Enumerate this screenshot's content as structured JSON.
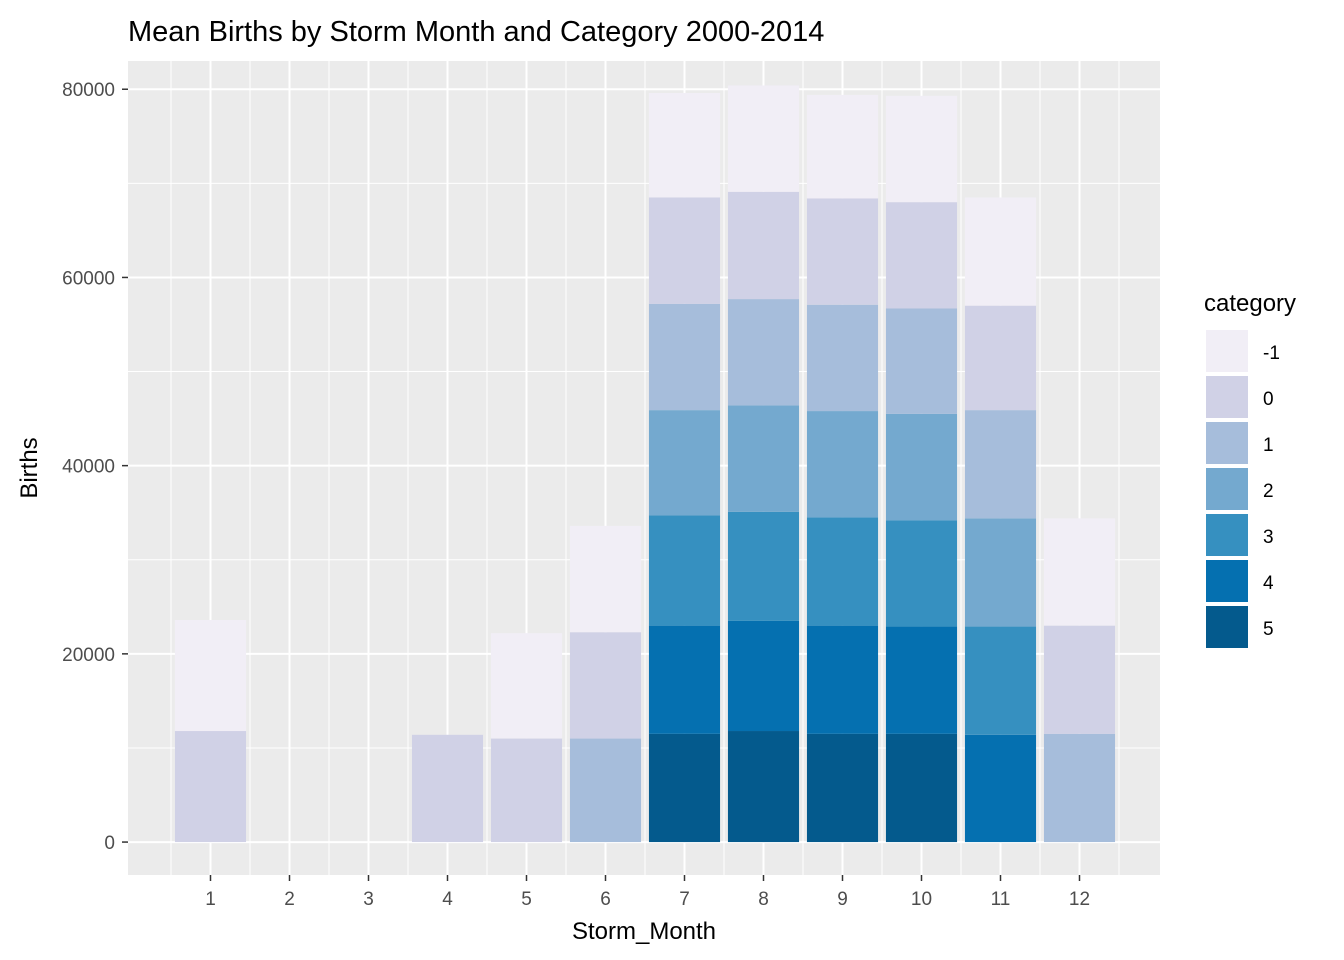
{
  "chart_data": {
    "type": "bar",
    "stacked": true,
    "title": "Mean Births by Storm Month and Category 2000-2014",
    "xlabel": "Storm_Month",
    "ylabel": "Births",
    "ylim": [
      -3500,
      83000
    ],
    "yticks": [
      "0",
      "20000",
      "40000",
      "60000",
      "80000"
    ],
    "ytick_values": [
      0,
      20000,
      40000,
      60000,
      80000
    ],
    "categories": [
      "1",
      "2",
      "3",
      "4",
      "5",
      "6",
      "7",
      "8",
      "9",
      "10",
      "11",
      "12"
    ],
    "legend": {
      "title": "category",
      "position": "right"
    },
    "grid": true,
    "series": [
      {
        "name": "5",
        "color": "#045a8d",
        "values": [
          0,
          0,
          0,
          0,
          0,
          0,
          11500,
          11800,
          11500,
          11500,
          0,
          0
        ]
      },
      {
        "name": "4",
        "color": "#0570b0",
        "values": [
          0,
          0,
          0,
          0,
          0,
          0,
          11500,
          11700,
          11500,
          11400,
          11400,
          0
        ]
      },
      {
        "name": "3",
        "color": "#3690c0",
        "values": [
          0,
          0,
          0,
          0,
          0,
          0,
          11700,
          11600,
          11500,
          11300,
          11500,
          0
        ]
      },
      {
        "name": "2",
        "color": "#74a9cf",
        "values": [
          0,
          0,
          0,
          0,
          0,
          0,
          11200,
          11300,
          11300,
          11300,
          11500,
          0
        ]
      },
      {
        "name": "1",
        "color": "#a6bddb",
        "values": [
          0,
          0,
          0,
          0,
          0,
          11000,
          11300,
          11300,
          11300,
          11200,
          11500,
          11500
        ]
      },
      {
        "name": "0",
        "color": "#d0d1e6",
        "values": [
          11800,
          0,
          0,
          11400,
          11000,
          11300,
          11300,
          11400,
          11300,
          11300,
          11100,
          11500
        ]
      },
      {
        "name": "-1",
        "color": "#f1eef6",
        "values": [
          11800,
          0,
          0,
          0,
          11200,
          11300,
          11100,
          11300,
          11000,
          11300,
          11500,
          11400
        ]
      }
    ]
  }
}
